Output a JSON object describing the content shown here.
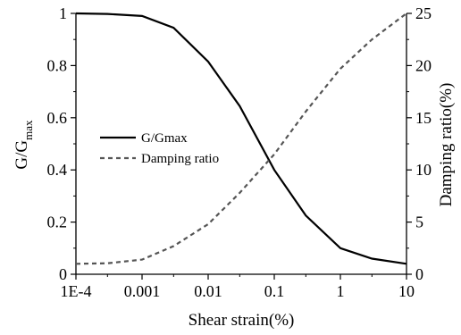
{
  "chart_data": {
    "type": "line",
    "xlabel": "Shear strain(%)",
    "ylabel_left_main": "G/G",
    "ylabel_left_sub": "max",
    "ylabel_right": "Damping ratio(%)",
    "x_scale": "log",
    "xlim": [
      0.0001,
      10
    ],
    "x_ticks": [
      0.0001,
      0.001,
      0.01,
      0.1,
      1,
      10
    ],
    "x_tick_labels": [
      "1E-4",
      "0.001",
      "0.01",
      "0.1",
      "1",
      "10"
    ],
    "ylim_left": [
      0,
      1
    ],
    "y_left_ticks": [
      0,
      0.2,
      0.4,
      0.6,
      0.8,
      1
    ],
    "y_left_tick_labels": [
      "0",
      "0.2",
      "0.4",
      "0.6",
      "0.8",
      "1"
    ],
    "ylim_right": [
      0,
      25
    ],
    "y_right_ticks": [
      0,
      5,
      10,
      15,
      20,
      25
    ],
    "y_right_tick_labels": [
      "0",
      "5",
      "10",
      "15",
      "20",
      "25"
    ],
    "grid": false,
    "legend_position": "center-left",
    "series": [
      {
        "name": "G/Gmax",
        "axis": "left",
        "style": "solid",
        "color": "#000000",
        "x": [
          0.0001,
          0.0003,
          0.001,
          0.003,
          0.01,
          0.03,
          0.1,
          0.3,
          1,
          3,
          10
        ],
        "y": [
          1.0,
          0.998,
          0.99,
          0.945,
          0.815,
          0.645,
          0.4,
          0.225,
          0.1,
          0.06,
          0.04
        ]
      },
      {
        "name": "Damping ratio",
        "axis": "right",
        "style": "dashed",
        "color": "#555555",
        "x": [
          0.0001,
          0.0003,
          0.001,
          0.003,
          0.01,
          0.03,
          0.1,
          0.3,
          1,
          3,
          10
        ],
        "y": [
          1.0,
          1.05,
          1.4,
          2.7,
          4.8,
          7.8,
          11.5,
          15.6,
          19.7,
          22.5,
          25.0
        ]
      }
    ]
  }
}
